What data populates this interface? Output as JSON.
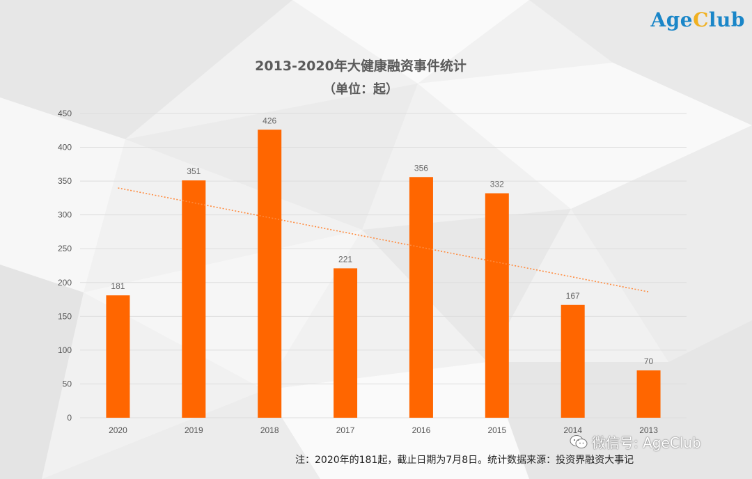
{
  "brand": {
    "logo_prefix": "Age",
    "logo_c": "C",
    "logo_suffix": "lub"
  },
  "wechat": {
    "label": "微信号: AgeClub",
    "icon": "wechat-icon"
  },
  "note": "注：2020年的181起，截止日期为7月8日。统计数据来源：投资界融资大事记",
  "chart_data": {
    "type": "bar",
    "title": "2013-2020年大健康融资事件统计",
    "subtitle": "（单位：起）",
    "categories": [
      "2020",
      "2019",
      "2018",
      "2017",
      "2016",
      "2015",
      "2014",
      "2013"
    ],
    "values": [
      181,
      351,
      426,
      221,
      356,
      332,
      167,
      70
    ],
    "ylim": [
      0,
      450
    ],
    "yticks": [
      0,
      50,
      100,
      150,
      200,
      250,
      300,
      350,
      400,
      450
    ],
    "grid": true,
    "trendline": {
      "type": "linear",
      "style": "dotted"
    },
    "colors": {
      "bar": "#ff6600",
      "trend": "#ff8a3d",
      "grid": "#dddddd",
      "label": "#666666"
    }
  }
}
